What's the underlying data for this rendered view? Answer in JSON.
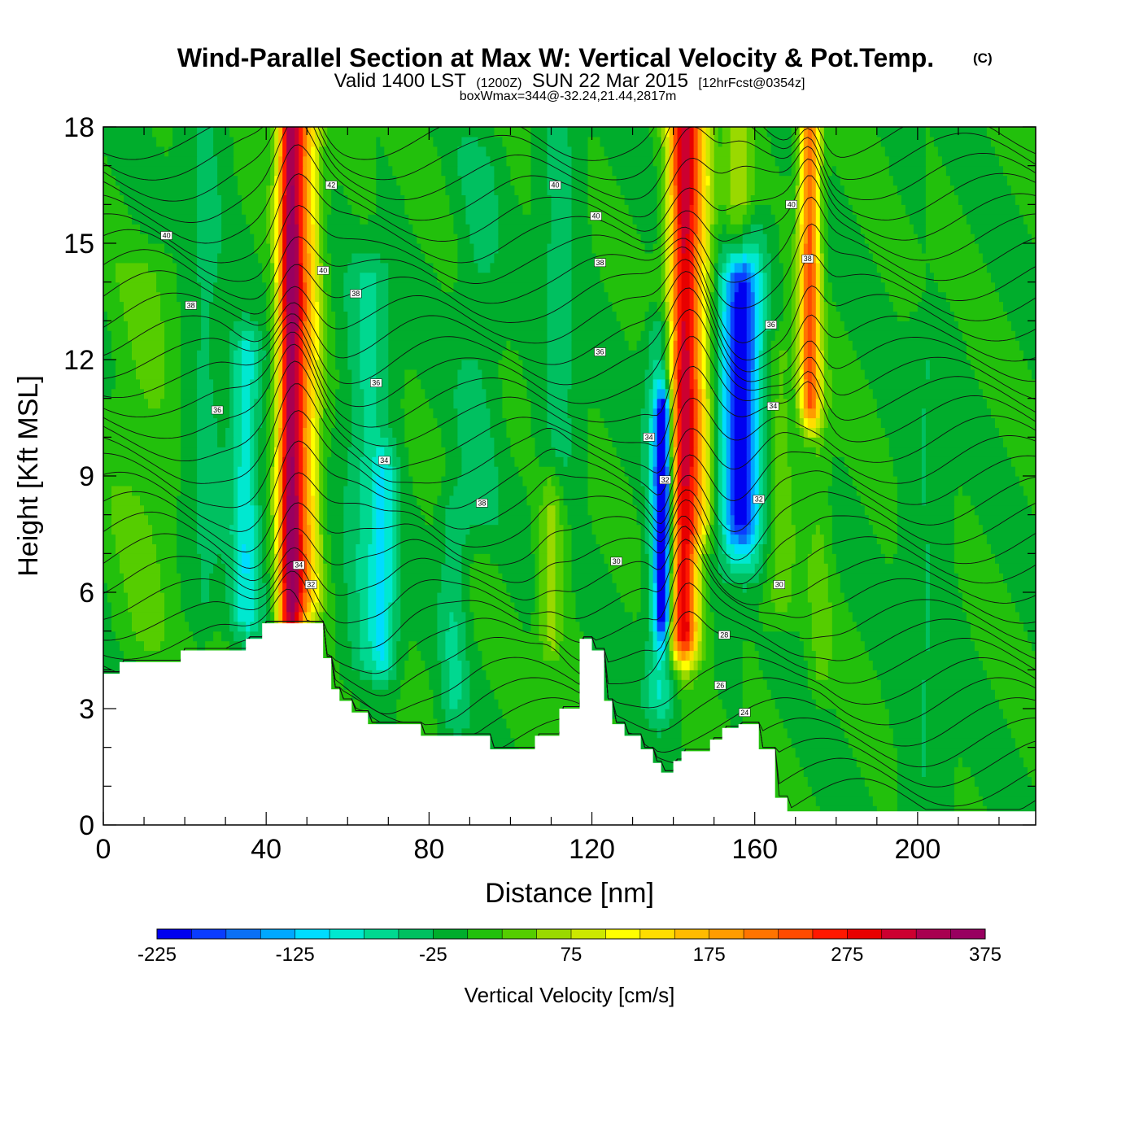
{
  "title": "Wind-Parallel Section at Max W: Vertical Velocity & Pot.Temp.",
  "copyright": "(C)",
  "subtitle": {
    "valid": "Valid 1400 LST",
    "utc": "(1200Z)",
    "date": "SUN 22 Mar 2015",
    "forecast": "[12hrFcst@0354z]"
  },
  "box_info": "boxWmax=344@-32.24,21.44,2817m",
  "colorbar": {
    "label": "Vertical Velocity [cm/s]",
    "tick_labels": [
      "-225",
      "-125",
      "-25",
      "75",
      "175",
      "275",
      "375"
    ],
    "levels": [
      -225,
      -200,
      -175,
      -150,
      -125,
      -100,
      -75,
      -50,
      -25,
      0,
      25,
      50,
      75,
      100,
      125,
      150,
      175,
      200,
      225,
      250,
      275,
      300,
      325,
      350,
      375
    ],
    "colors": [
      "#0000f0",
      "#0a3cff",
      "#0a70f5",
      "#00a8ff",
      "#00dcff",
      "#00e8d0",
      "#00d890",
      "#00c060",
      "#00ad2c",
      "#22c00c",
      "#55cd00",
      "#9ad900",
      "#cce800",
      "#ffff00",
      "#ffdd00",
      "#ffbb00",
      "#ff9c00",
      "#ff7400",
      "#ff4b00",
      "#ff1800",
      "#e80000",
      "#cc0030",
      "#a80050",
      "#980060"
    ]
  },
  "chart_data": {
    "type": "heatmap",
    "xlabel": "Distance [nm]",
    "ylabel": "Height [Kft MSL]",
    "xlim": [
      0,
      229
    ],
    "ylim": [
      0,
      18
    ],
    "x_ticks": [
      0,
      40,
      80,
      120,
      160,
      200
    ],
    "y_ticks": [
      0,
      3,
      6,
      9,
      12,
      15,
      18
    ],
    "field_name": "Vertical Velocity",
    "field_units": "cm/s",
    "background_w": 0,
    "w_features": [
      {
        "x": 46,
        "y0": 5.5,
        "y1": 18,
        "sigma_x": 2.2,
        "w": 340
      },
      {
        "x": 50.5,
        "y0": 6,
        "y1": 18,
        "sigma_x": 2.2,
        "w": 130
      },
      {
        "x": 35,
        "y0": 5.5,
        "y1": 12,
        "sigma_x": 2.5,
        "w": -90
      },
      {
        "x": 65,
        "y0": 4.5,
        "y1": 14,
        "sigma_x": 4,
        "w": -55
      },
      {
        "x": 69,
        "y0": 4.5,
        "y1": 9,
        "sigma_x": 2.2,
        "w": -70
      },
      {
        "x": 86,
        "y0": 3,
        "y1": 8,
        "sigma_x": 2.5,
        "w": -45
      },
      {
        "x": 92,
        "y0": 8,
        "y1": 17,
        "sigma_x": 4,
        "w": -30
      },
      {
        "x": 110,
        "y0": 5,
        "y1": 8.5,
        "sigma_x": 2,
        "w": 65
      },
      {
        "x": 112,
        "y0": 9,
        "y1": 18,
        "sigma_x": 3.5,
        "w": -35
      },
      {
        "x": 137.5,
        "y0": 5.5,
        "y1": 10.5,
        "sigma_x": 1.4,
        "w": -215
      },
      {
        "x": 137,
        "y0": 3.5,
        "y1": 12.5,
        "sigma_x": 2.5,
        "w": -80
      },
      {
        "x": 142.5,
        "y0": 5,
        "y1": 18,
        "sigma_x": 2.6,
        "w": 300
      },
      {
        "x": 147,
        "y0": 8,
        "y1": 18,
        "sigma_x": 2.2,
        "w": 90
      },
      {
        "x": 156.5,
        "y0": 8,
        "y1": 14,
        "sigma_x": 3,
        "w": -150
      },
      {
        "x": 157,
        "y0": 7,
        "y1": 15,
        "sigma_x": 4.5,
        "w": -70
      },
      {
        "x": 156,
        "y0": 15,
        "y1": 18,
        "sigma_x": 2.5,
        "w": 75
      },
      {
        "x": 166,
        "y0": 6,
        "y1": 12,
        "sigma_x": 2.5,
        "w": 45
      },
      {
        "x": 173.5,
        "y0": 11,
        "y1": 18,
        "sigma_x": 1.8,
        "w": 230
      },
      {
        "x": 176,
        "y0": 4,
        "y1": 11,
        "sigma_x": 2,
        "w": 30
      },
      {
        "x": 202,
        "y0": 0.5,
        "y1": 12,
        "sigma_x": 4,
        "w": -25
      },
      {
        "x": 10,
        "y0": 5,
        "y1": 14,
        "sigma_x": 6,
        "w": 28
      },
      {
        "x": 25,
        "y0": 6,
        "y1": 18,
        "sigma_x": 4,
        "w": -30
      }
    ],
    "terrain": {
      "x": [
        0,
        4,
        4,
        19,
        19,
        35,
        35,
        39,
        39,
        54,
        54,
        56,
        56,
        58,
        58,
        61,
        61,
        65,
        65,
        78,
        78,
        95,
        95,
        106,
        106,
        112,
        112,
        117,
        117,
        120,
        120,
        123,
        123,
        125,
        125,
        128,
        128,
        132,
        132,
        135,
        135,
        137,
        137,
        140,
        140,
        142,
        142,
        149,
        149,
        152,
        152,
        156,
        156,
        161,
        161,
        165,
        165,
        168,
        168,
        229
      ],
      "y": [
        3.9,
        3.9,
        4.2,
        4.2,
        4.5,
        4.5,
        4.8,
        4.8,
        5.2,
        5.2,
        4.3,
        4.3,
        3.5,
        3.5,
        3.2,
        3.2,
        2.9,
        2.9,
        2.6,
        2.6,
        2.3,
        2.3,
        1.95,
        1.95,
        2.3,
        2.3,
        3.0,
        3.0,
        4.8,
        4.8,
        4.5,
        4.5,
        3.2,
        3.2,
        2.6,
        2.6,
        2.3,
        2.3,
        1.95,
        1.95,
        1.6,
        1.6,
        1.35,
        1.35,
        1.65,
        1.65,
        1.9,
        1.9,
        2.2,
        2.2,
        2.5,
        2.5,
        2.6,
        2.6,
        1.95,
        1.95,
        0.7,
        0.7,
        0.35,
        0.35
      ]
    },
    "theta_contours": {
      "levels": [
        24,
        26,
        28,
        30,
        32,
        34,
        36,
        38,
        40,
        42
      ],
      "labels": [
        {
          "text": "40",
          "x": 15.5,
          "y": 15.2
        },
        {
          "text": "38",
          "x": 21.5,
          "y": 13.4
        },
        {
          "text": "36",
          "x": 28,
          "y": 10.7
        },
        {
          "text": "42",
          "x": 56,
          "y": 16.5
        },
        {
          "text": "40",
          "x": 54,
          "y": 14.3
        },
        {
          "text": "38",
          "x": 62,
          "y": 13.7
        },
        {
          "text": "36",
          "x": 67,
          "y": 11.4
        },
        {
          "text": "34",
          "x": 69,
          "y": 9.4
        },
        {
          "text": "34",
          "x": 48,
          "y": 6.7
        },
        {
          "text": "32",
          "x": 51,
          "y": 6.2
        },
        {
          "text": "38",
          "x": 93,
          "y": 8.3
        },
        {
          "text": "40",
          "x": 111,
          "y": 16.5
        },
        {
          "text": "40",
          "x": 121,
          "y": 15.7
        },
        {
          "text": "38",
          "x": 122,
          "y": 14.5
        },
        {
          "text": "36",
          "x": 122,
          "y": 12.2
        },
        {
          "text": "34",
          "x": 134,
          "y": 10.0
        },
        {
          "text": "32",
          "x": 138,
          "y": 8.9
        },
        {
          "text": "30",
          "x": 126,
          "y": 6.8
        },
        {
          "text": "40",
          "x": 169,
          "y": 16.0
        },
        {
          "text": "38",
          "x": 173,
          "y": 14.6
        },
        {
          "text": "36",
          "x": 164,
          "y": 12.9
        },
        {
          "text": "34",
          "x": 164.5,
          "y": 10.8
        },
        {
          "text": "32",
          "x": 161,
          "y": 8.4
        },
        {
          "text": "30",
          "x": 166,
          "y": 6.2
        },
        {
          "text": "28",
          "x": 152.5,
          "y": 4.9
        },
        {
          "text": "26",
          "x": 151.5,
          "y": 3.6
        },
        {
          "text": "24",
          "x": 157.5,
          "y": 2.9
        }
      ]
    }
  }
}
